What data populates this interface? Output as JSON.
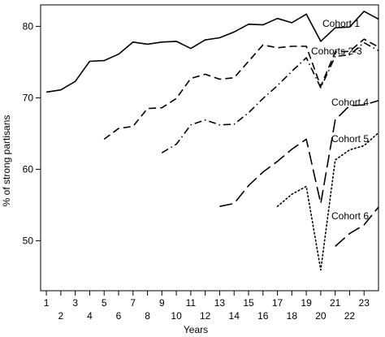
{
  "chart_data": {
    "type": "line",
    "xlabel": "Years",
    "ylabel": "% of strong partisans",
    "xlim": [
      0.6,
      24.0
    ],
    "ylim": [
      43,
      83
    ],
    "x_ticks_odd": [
      1,
      3,
      5,
      7,
      9,
      11,
      13,
      15,
      17,
      19,
      21,
      23
    ],
    "x_ticks_even": [
      2,
      4,
      6,
      8,
      10,
      12,
      14,
      16,
      18,
      20,
      22
    ],
    "y_ticks": [
      50,
      60,
      70,
      80
    ],
    "grid": false,
    "legend": "direct labels at line ends",
    "series": [
      {
        "name": "Cohort 1",
        "style": "solid",
        "x": [
          1,
          2,
          3,
          4,
          5,
          6,
          7,
          8,
          9,
          10,
          11,
          12,
          13,
          14,
          15,
          16,
          17,
          18,
          19,
          20,
          21,
          22,
          23,
          24
        ],
        "values": [
          70.8,
          71.1,
          72.3,
          75.1,
          75.2,
          76.1,
          77.8,
          77.5,
          77.8,
          77.9,
          76.9,
          78.1,
          78.4,
          79.2,
          80.3,
          80.2,
          81.1,
          80.5,
          81.7,
          77.9,
          79.8,
          79.9,
          82.1,
          81.0
        ]
      },
      {
        "name": "Cohorts 2-3",
        "style": "dash",
        "x": [
          5,
          6,
          7,
          8,
          9,
          10,
          11,
          12,
          13,
          14,
          15,
          16,
          17,
          18,
          19,
          20,
          21,
          22,
          23,
          24
        ],
        "values": [
          64.2,
          65.7,
          66.0,
          68.5,
          68.6,
          69.9,
          72.7,
          73.3,
          72.6,
          72.8,
          75.1,
          77.4,
          77.0,
          77.2,
          77.2,
          71.6,
          76.4,
          76.5,
          78.2,
          77.1
        ]
      },
      {
        "name": "",
        "style": "dashdot",
        "x": [
          9,
          10,
          11,
          12,
          13,
          14,
          15,
          16,
          17,
          18,
          19,
          20,
          21,
          22,
          23,
          24
        ],
        "values": [
          62.3,
          63.5,
          66.2,
          66.9,
          66.2,
          66.3,
          67.9,
          69.9,
          71.7,
          73.7,
          75.6,
          71.4,
          75.8,
          76.0,
          77.7,
          76.6
        ]
      },
      {
        "name": "Cohort 4",
        "style": "longdash",
        "x": [
          13,
          14,
          15,
          16,
          17,
          18,
          19,
          20,
          21,
          22,
          23,
          24
        ],
        "values": [
          54.8,
          55.2,
          57.7,
          59.6,
          61.1,
          62.8,
          64.2,
          55.2,
          66.9,
          68.9,
          69.0,
          69.6
        ]
      },
      {
        "name": "Cohort 5",
        "style": "dot",
        "x": [
          17,
          18,
          19,
          20,
          21,
          22,
          23,
          24
        ],
        "values": [
          54.8,
          56.5,
          57.6,
          45.9,
          61.3,
          62.7,
          63.3,
          65.1
        ]
      },
      {
        "name": "Cohort 6",
        "style": "longdash",
        "x": [
          21,
          22,
          23,
          24
        ],
        "values": [
          49.2,
          51.0,
          52.2,
          54.7
        ]
      }
    ]
  }
}
